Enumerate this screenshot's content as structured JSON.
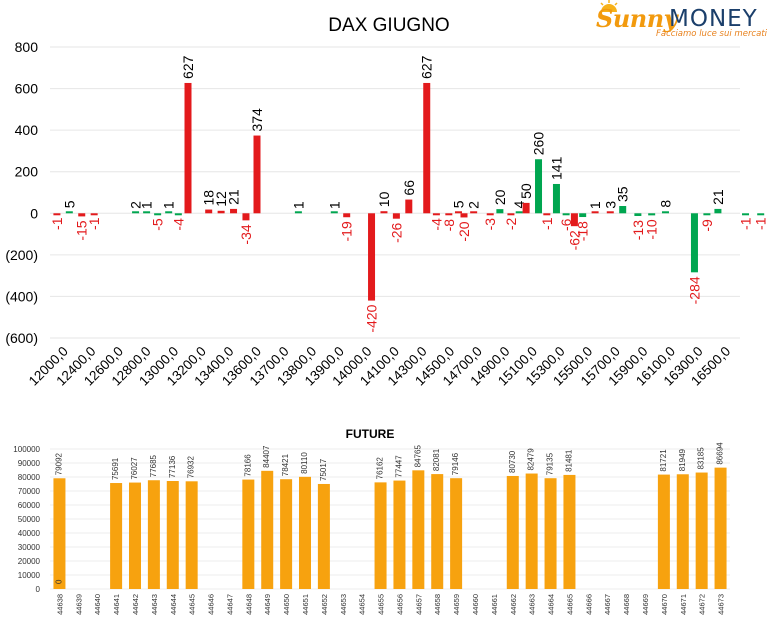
{
  "logo": {
    "brand_part1": "Sunny",
    "brand_part2": "MONEY",
    "tagline": "Facciamo luce sui mercati"
  },
  "colors": {
    "call": "#00a650",
    "put": "#e31a1c",
    "future": "#f7a20f",
    "grid": "#e6e6e6",
    "text": "#000000"
  },
  "chart_data": [
    {
      "type": "bar",
      "title": "DAX GIUGNO",
      "ylim": [
        -600,
        800
      ],
      "yticks": [
        800,
        600,
        400,
        200,
        0,
        -200,
        -400,
        -600
      ],
      "ytick_labels": [
        "800",
        "600",
        "400",
        "200",
        "0",
        "(200)",
        "(400)",
        "(600)"
      ],
      "categories": [
        "12000,0",
        "12400,0",
        "12600,0",
        "12800,0",
        "13000,0",
        "13200,0",
        "13400,0",
        "13600,0",
        "13700,0",
        "13800,0",
        "13900,0",
        "14000,0",
        "14100,0",
        "14300,0",
        "14500,0",
        "14700,0",
        "14900,0",
        "15100,0",
        "15300,0",
        "15500,0",
        "15700,0",
        "15900,0",
        "16100,0",
        "16300,0",
        "16500,0"
      ],
      "series": [
        {
          "color": "put",
          "points": [
            {
              "x": 0.25,
              "value": -1
            },
            {
              "x": 0.7,
              "value": 5
            },
            {
              "x": 1.15,
              "value": -15
            },
            {
              "x": 1.6,
              "value": -1
            },
            {
              "x": 3.1,
              "value": 2
            },
            {
              "x": 3.5,
              "value": 1
            },
            {
              "x": 3.9,
              "value": -5
            },
            {
              "x": 4.3,
              "value": 1
            },
            {
              "x": 4.65,
              "value": -4
            },
            {
              "x": 5.0,
              "value": 627
            },
            {
              "x": 5.75,
              "value": 18
            },
            {
              "x": 6.2,
              "value": 12
            },
            {
              "x": 6.65,
              "value": 21
            },
            {
              "x": 7.1,
              "value": -34
            },
            {
              "x": 7.5,
              "value": 374
            },
            {
              "x": 9.0,
              "value": 1
            },
            {
              "x": 10.3,
              "value": 1
            },
            {
              "x": 10.75,
              "value": -19
            },
            {
              "x": 11.65,
              "value": -420
            },
            {
              "x": 12.1,
              "value": 10
            },
            {
              "x": 12.55,
              "value": -26
            },
            {
              "x": 13.0,
              "value": 66
            },
            {
              "x": 13.65,
              "value": 627
            },
            {
              "x": 14.0,
              "value": -4
            },
            {
              "x": 14.45,
              "value": -8
            },
            {
              "x": 14.8,
              "value": 5
            },
            {
              "x": 15.0,
              "value": -20
            },
            {
              "x": 15.35,
              "value": 2
            },
            {
              "x": 15.95,
              "value": -3
            },
            {
              "x": 16.3,
              "value": 20
            },
            {
              "x": 16.7,
              "value": -2
            },
            {
              "x": 17.0,
              "value": 4
            },
            {
              "x": 17.25,
              "value": 50
            },
            {
              "x": 17.7,
              "value": 260
            },
            {
              "x": 18.0,
              "value": -1
            },
            {
              "x": 18.35,
              "value": 141
            },
            {
              "x": 18.7,
              "value": -6
            },
            {
              "x": 19.0,
              "value": -62
            },
            {
              "x": 19.3,
              "value": -18
            },
            {
              "x": 19.75,
              "value": 1
            },
            {
              "x": 20.3,
              "value": 3
            },
            {
              "x": 20.75,
              "value": 35
            },
            {
              "x": 21.3,
              "value": -13
            },
            {
              "x": 21.8,
              "value": -10
            },
            {
              "x": 22.3,
              "value": 8
            },
            {
              "x": 23.35,
              "value": -284
            },
            {
              "x": 23.8,
              "value": -9
            },
            {
              "x": 24.2,
              "value": 21
            },
            {
              "x": 25.2,
              "value": -1
            },
            {
              "x": 25.75,
              "value": -1
            }
          ]
        }
      ],
      "bar_colors": [
        "put",
        "call",
        "put",
        "put",
        "call",
        "call",
        "call",
        "call",
        "call",
        "put",
        "put",
        "put",
        "put",
        "put",
        "put",
        "call",
        "call",
        "put",
        "put",
        "put",
        "put",
        "put",
        "put",
        "put",
        "put",
        "put",
        "put",
        "put",
        "put",
        "call",
        "put",
        "call",
        "put",
        "call",
        "put",
        "call",
        "call",
        "put",
        "call",
        "put",
        "put",
        "call",
        "call",
        "call",
        "call",
        "call",
        "call",
        "call",
        "call",
        "call"
      ]
    },
    {
      "type": "bar",
      "title": "FUTURE",
      "ylim": [
        0,
        100000
      ],
      "yticks": [
        100000,
        90000,
        80000,
        70000,
        60000,
        50000,
        40000,
        30000,
        20000,
        10000,
        0
      ],
      "categories": [
        "44638",
        "44639",
        "44640",
        "44641",
        "44642",
        "44643",
        "44644",
        "44645",
        "44646",
        "44647",
        "44648",
        "44649",
        "44650",
        "44651",
        "44652",
        "44653",
        "44654",
        "44655",
        "44656",
        "44657",
        "44658",
        "44659",
        "44660",
        "44661",
        "44662",
        "44663",
        "44664",
        "44665",
        "44666",
        "44667",
        "44668",
        "44669",
        "44670",
        "44671",
        "44672",
        "44673"
      ],
      "values": [
        79092,
        null,
        null,
        75691,
        76027,
        77685,
        77136,
        76932,
        null,
        null,
        78166,
        84407,
        78421,
        80110,
        75017,
        null,
        null,
        76162,
        77447,
        84765,
        82081,
        79146,
        null,
        null,
        80730,
        82479,
        79135,
        81481,
        null,
        null,
        null,
        null,
        81721,
        81949,
        83185,
        86694
      ],
      "extra_labels": [
        {
          "category": "44638",
          "text": "0"
        }
      ]
    }
  ]
}
